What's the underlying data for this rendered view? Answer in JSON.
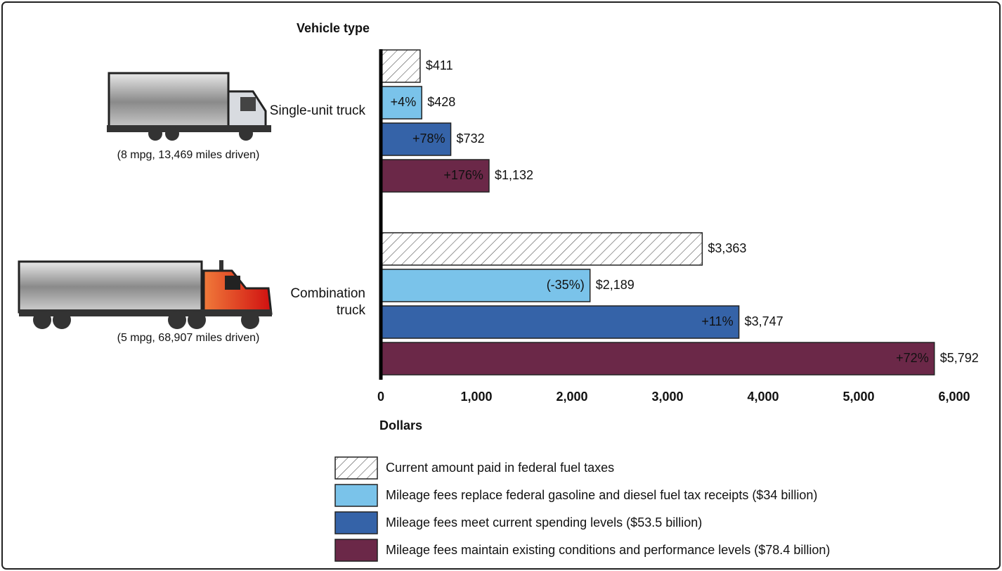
{
  "chart_data": {
    "type": "bar",
    "orientation": "horizontal",
    "y_label": "Vehicle type",
    "x_label": "Dollars",
    "categories": [
      "Single-unit truck",
      "Combination truck"
    ],
    "category_notes": [
      "(8 mpg, 13,469 miles driven)",
      "(5 mpg, 68,907 miles driven)"
    ],
    "series": [
      {
        "name": "Current amount paid in federal fuel taxes",
        "color": "#ffffff",
        "pattern": "hatch",
        "values": [
          411,
          3363
        ],
        "value_labels": [
          "$411",
          "$3,363"
        ]
      },
      {
        "name": "Mileage fees replace federal gasoline and diesel fuel tax receipts ($34 billion)",
        "color": "#7ac3ea",
        "label_color": "#111111",
        "values": [
          428,
          2189
        ],
        "value_labels": [
          "$428",
          "$2,189"
        ],
        "change_labels": [
          "+4%",
          "(-35%)"
        ]
      },
      {
        "name": "Mileage fees meet current spending levels ($53.5 billion)",
        "color": "#3563a8",
        "label_color": "#ffffff",
        "values": [
          732,
          3747
        ],
        "value_labels": [
          "$732",
          "$3,747"
        ],
        "change_labels": [
          "+78%",
          "+11%"
        ]
      },
      {
        "name": "Mileage fees maintain existing conditions and performance levels ($78.4 billion)",
        "color": "#6b2848",
        "label_color": "#ffffff",
        "values": [
          1132,
          5792
        ],
        "value_labels": [
          "$1,132",
          "$5,792"
        ],
        "change_labels": [
          "+176%",
          "+72%"
        ]
      }
    ],
    "xlim": [
      0,
      6000
    ],
    "xticks": [
      0,
      {
        "value": 1000,
        "label": "1,000"
      },
      {
        "value": 2000,
        "label": "2,000"
      },
      {
        "value": 3000,
        "label": "3,000"
      },
      {
        "value": 4000,
        "label": "4,000"
      },
      {
        "value": 5000,
        "label": "5,000"
      },
      {
        "value": 6000,
        "label": "6,000"
      }
    ]
  }
}
